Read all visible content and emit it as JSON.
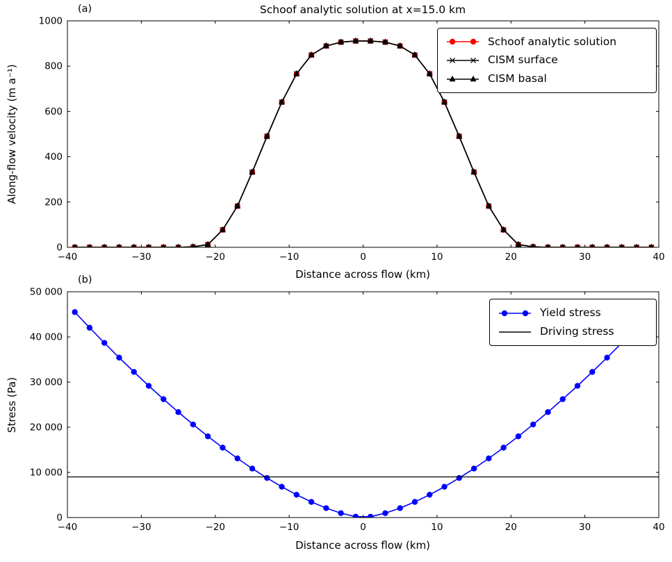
{
  "panels": {
    "a_label": "(a)",
    "b_label": "(b)"
  },
  "colors": {
    "schoof_red": "#ff0000",
    "cism_black": "#000000",
    "yield_blue": "#0000ff",
    "axes": "#000000",
    "background": "#ffffff"
  },
  "chart_data": [
    {
      "id": "panel_a",
      "type": "line",
      "title": "Schoof analytic solution at x=15.0 km",
      "xlabel": "Distance across flow (km)",
      "ylabel": "Along-flow velocity (m a⁻¹)",
      "xlim": [
        -40,
        40
      ],
      "ylim": [
        0,
        1000
      ],
      "xticks": [
        -40,
        -30,
        -20,
        -10,
        0,
        10,
        20,
        30,
        40
      ],
      "xticklabels": [
        "−40",
        "−30",
        "−20",
        "−10",
        "0",
        "10",
        "20",
        "30",
        "40"
      ],
      "yticks": [
        0,
        200,
        400,
        600,
        800,
        1000
      ],
      "yticklabels": [
        "0",
        "200",
        "400",
        "600",
        "800",
        "1000"
      ],
      "grid": false,
      "legend_position": "upper right",
      "x": [
        -39,
        -37,
        -35,
        -33,
        -31,
        -29,
        -27,
        -25,
        -23,
        -21,
        -19,
        -17,
        -15,
        -13,
        -11,
        -9,
        -7,
        -5,
        -3,
        -1,
        1,
        3,
        5,
        7,
        9,
        11,
        13,
        15,
        17,
        19,
        21,
        23,
        25,
        27,
        29,
        31,
        33,
        35,
        37,
        39
      ],
      "series": [
        {
          "name": "Schoof analytic solution",
          "color": "#ff0000",
          "marker": "circle",
          "values": [
            0,
            0,
            0,
            0,
            0,
            0,
            0,
            0,
            2,
            12,
            77,
            182,
            332,
            490,
            641,
            766,
            849,
            889,
            906,
            911,
            911,
            906,
            889,
            849,
            766,
            641,
            490,
            332,
            182,
            77,
            12,
            2,
            0,
            0,
            0,
            0,
            0,
            0,
            0,
            0
          ]
        },
        {
          "name": "CISM surface",
          "color": "#000000",
          "marker": "x",
          "values": [
            0,
            0,
            0,
            0,
            0,
            0,
            0,
            0,
            2,
            12,
            77,
            182,
            332,
            490,
            641,
            766,
            849,
            889,
            906,
            911,
            911,
            906,
            889,
            849,
            766,
            641,
            490,
            332,
            182,
            77,
            12,
            2,
            0,
            0,
            0,
            0,
            0,
            0,
            0,
            0
          ]
        },
        {
          "name": "CISM basal",
          "color": "#000000",
          "marker": "triangle",
          "values": [
            0,
            0,
            0,
            0,
            0,
            0,
            0,
            0,
            2,
            12,
            77,
            182,
            332,
            490,
            641,
            766,
            849,
            889,
            906,
            911,
            911,
            906,
            889,
            849,
            766,
            641,
            490,
            332,
            182,
            77,
            12,
            2,
            0,
            0,
            0,
            0,
            0,
            0,
            0,
            0
          ]
        }
      ]
    },
    {
      "id": "panel_b",
      "type": "line",
      "title": "",
      "xlabel": "Distance across flow (km)",
      "ylabel": "Stress (Pa)",
      "xlim": [
        -40,
        40
      ],
      "ylim": [
        0,
        50000
      ],
      "xticks": [
        -40,
        -30,
        -20,
        -10,
        0,
        10,
        20,
        30,
        40
      ],
      "xticklabels": [
        "−40",
        "−30",
        "−20",
        "−10",
        "0",
        "10",
        "20",
        "30",
        "40"
      ],
      "yticks": [
        0,
        10000,
        20000,
        30000,
        40000,
        50000
      ],
      "yticklabels": [
        "0",
        "10 000",
        "20 000",
        "30 000",
        "40 000",
        "50 000"
      ],
      "grid": false,
      "legend_position": "upper right",
      "x": [
        -39,
        -37,
        -35,
        -33,
        -31,
        -29,
        -27,
        -25,
        -23,
        -21,
        -19,
        -17,
        -15,
        -13,
        -11,
        -9,
        -7,
        -5,
        -3,
        -1,
        1,
        3,
        5,
        7,
        9,
        11,
        13,
        15,
        17,
        19,
        21,
        23,
        25,
        27,
        29,
        31,
        33,
        35,
        37,
        39
      ],
      "series": [
        {
          "name": "Yield stress",
          "color": "#0000ff",
          "marker": "circle",
          "values": [
            45500,
            42040,
            38680,
            35410,
            32250,
            29170,
            26210,
            23350,
            20610,
            17980,
            15480,
            13100,
            10850,
            8760,
            6820,
            5050,
            3460,
            2090,
            970,
            190,
            190,
            970,
            2090,
            3460,
            5050,
            6820,
            8760,
            10850,
            13100,
            15480,
            17980,
            20610,
            23350,
            26210,
            29170,
            32250,
            35410,
            38680,
            42040,
            45500
          ]
        },
        {
          "name": "Driving stress",
          "color": "#000000",
          "marker": "none",
          "hline": 9000
        }
      ]
    }
  ]
}
